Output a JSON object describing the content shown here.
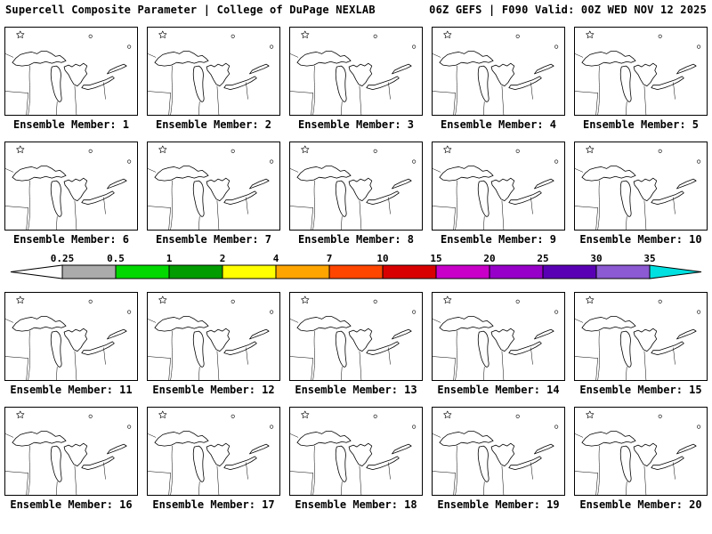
{
  "header": {
    "left": "Supercell Composite Parameter | College of DuPage NEXLAB",
    "right": "06Z GEFS | F090 Valid: 00Z WED NOV 12 2025"
  },
  "panels": {
    "caption_prefix": "Ensemble Member:",
    "rows": [
      [
        1,
        2,
        3,
        4,
        5
      ],
      [
        6,
        7,
        8,
        9,
        10
      ],
      [
        11,
        12,
        13,
        14,
        15
      ],
      [
        16,
        17,
        18,
        19,
        20
      ]
    ]
  },
  "colorbar": {
    "tick_labels": [
      "0.25",
      "0.5",
      "1",
      "2",
      "4",
      "7",
      "10",
      "15",
      "20",
      "25",
      "30",
      "35"
    ],
    "segment_colors": [
      "#FFFFFF",
      "#ABABAB",
      "#00D800",
      "#009C00",
      "#FFFF00",
      "#FFA500",
      "#FF4600",
      "#D80000",
      "#C800C8",
      "#9600C8",
      "#5A00B4",
      "#8C5AD2",
      "#00E0E0"
    ],
    "outline_color": "#000000"
  }
}
